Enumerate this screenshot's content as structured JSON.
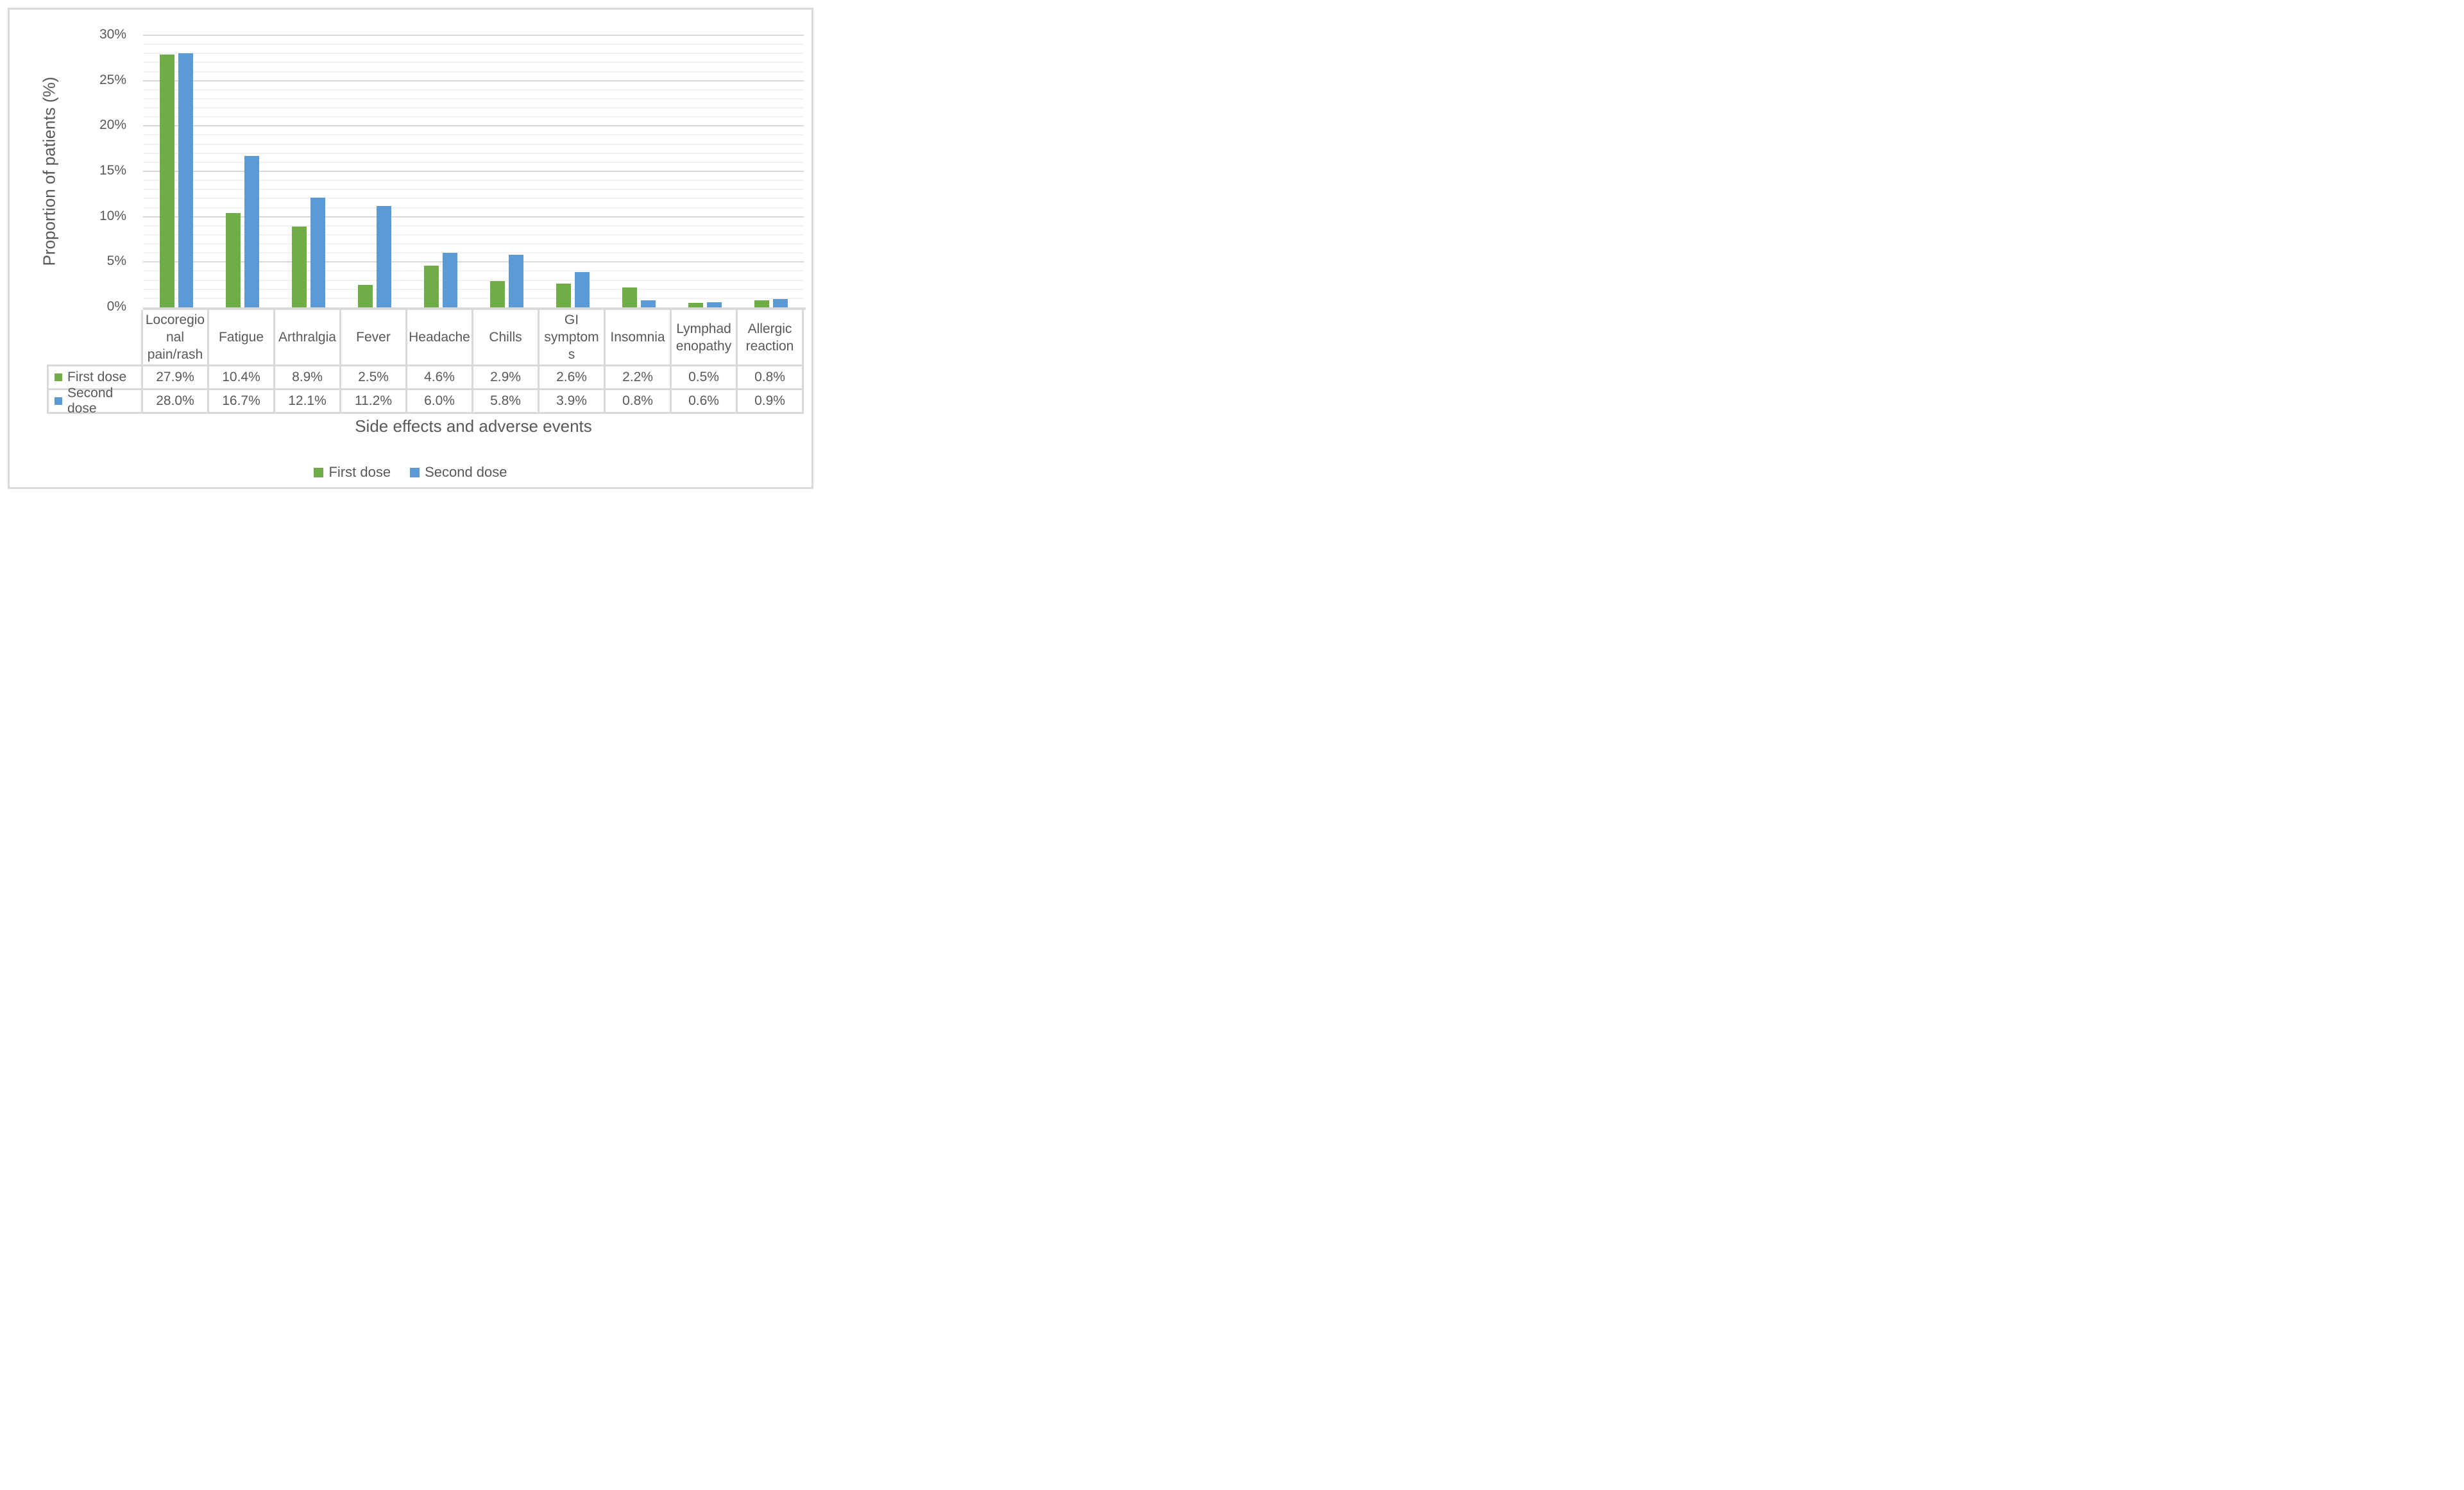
{
  "chart_data": {
    "type": "bar",
    "title": "",
    "xlabel": "Side effects and adverse events",
    "ylabel": "Proportion of patients (%)",
    "ylim": [
      0,
      30
    ],
    "y_ticks": [
      "0%",
      "5%",
      "10%",
      "15%",
      "20%",
      "25%",
      "30%"
    ],
    "y_major_step": 5,
    "y_minor_step": 1,
    "grid": "horizontal minor every 1%, major every 5%",
    "legend_position": "bottom-center",
    "categories": [
      "Locoregional pain/rash",
      "Fatigue",
      "Arthralgia",
      "Fever",
      "Headache",
      "Chills",
      "GI symptoms",
      "Insomnia",
      "Lymphadenopathy",
      "Allergic reaction"
    ],
    "category_label_lines": [
      [
        "Locoregio",
        "nal",
        "pain/rash"
      ],
      [
        "Fatigue"
      ],
      [
        "Arthralgia"
      ],
      [
        "Fever"
      ],
      [
        "Headache"
      ],
      [
        "Chills"
      ],
      [
        "GI",
        "symptom",
        "s"
      ],
      [
        "Insomnia"
      ],
      [
        "Lymphad",
        "enopathy"
      ],
      [
        "Allergic",
        "reaction"
      ]
    ],
    "series": [
      {
        "name": "First dose",
        "color": "#70AD47",
        "values": [
          27.9,
          10.4,
          8.9,
          2.5,
          4.6,
          2.9,
          2.6,
          2.2,
          0.5,
          0.8
        ],
        "labels": [
          "27.9%",
          "10.4%",
          "8.9%",
          "2.5%",
          "4.6%",
          "2.9%",
          "2.6%",
          "2.2%",
          "0.5%",
          "0.8%"
        ]
      },
      {
        "name": "Second dose",
        "color": "#5B9BD5",
        "values": [
          28.0,
          16.7,
          12.1,
          11.2,
          6.0,
          5.8,
          3.9,
          0.8,
          0.6,
          0.9
        ],
        "labels": [
          "28.0%",
          "16.7%",
          "12.1%",
          "11.2%",
          "6.0%",
          "5.8%",
          "3.9%",
          "0.8%",
          "0.6%",
          "0.9%"
        ]
      }
    ]
  },
  "colors": {
    "text": "#595959",
    "grid_minor": "#F2F2F2",
    "grid_major": "#D9D9D9",
    "table_border": "#D9D9D9",
    "frame_border": "#D9D9D9",
    "first_dose": "#70AD47",
    "second_dose": "#5B9BD5"
  }
}
